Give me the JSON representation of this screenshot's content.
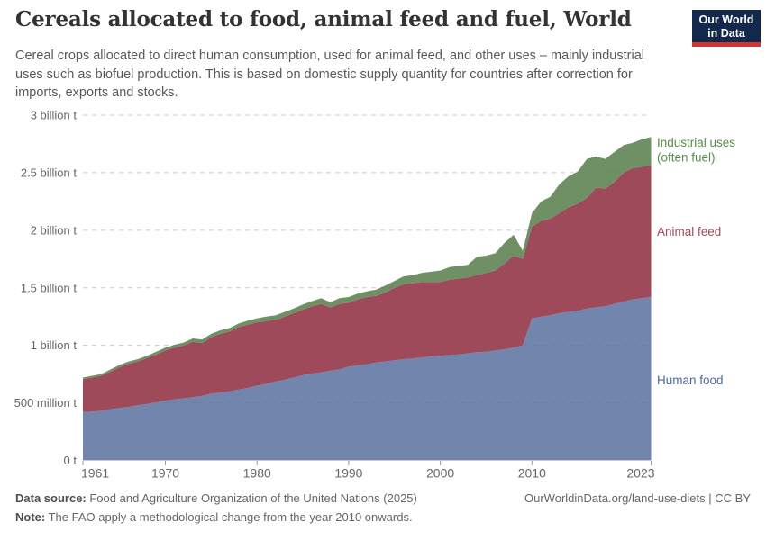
{
  "header": {
    "title": "Cereals allocated to food, animal feed and fuel, World",
    "subtitle": "Cereal crops allocated to direct human consumption, used for animal feed, and other uses – mainly industrial uses such as biofuel production. This is based on domestic supply quantity for countries after correction for imports, exports and stocks.",
    "logo": {
      "line1": "Our World",
      "line2": "in Data",
      "bg_color": "#12294d",
      "bar_color": "#d0362d"
    }
  },
  "chart_data": {
    "type": "area",
    "stacked": true,
    "title": "Cereals allocated to food, animal feed and fuel, World",
    "unit": "tonnes",
    "ylabel": "",
    "xlabel": "",
    "ylim_billion_t": [
      0,
      3
    ],
    "grid": true,
    "legend_position": "right-edge-labels",
    "x_ticks": [
      1961,
      1970,
      1980,
      1990,
      2000,
      2010,
      2023
    ],
    "y_ticks": [
      {
        "value": 0,
        "label": "0 t"
      },
      {
        "value": 0.5,
        "label": "500 million t"
      },
      {
        "value": 1,
        "label": "1 billion t"
      },
      {
        "value": 1.5,
        "label": "1.5 billion t"
      },
      {
        "value": 2,
        "label": "2 billion t"
      },
      {
        "value": 2.5,
        "label": "2.5 billion t"
      },
      {
        "value": 3,
        "label": "3 billion t"
      }
    ],
    "years": [
      1961,
      1962,
      1963,
      1964,
      1965,
      1966,
      1967,
      1968,
      1969,
      1970,
      1971,
      1972,
      1973,
      1974,
      1975,
      1976,
      1977,
      1978,
      1979,
      1980,
      1981,
      1982,
      1983,
      1984,
      1985,
      1986,
      1987,
      1988,
      1989,
      1990,
      1991,
      1992,
      1993,
      1994,
      1995,
      1996,
      1997,
      1998,
      1999,
      2000,
      2001,
      2002,
      2003,
      2004,
      2005,
      2006,
      2007,
      2008,
      2009,
      2010,
      2011,
      2012,
      2013,
      2014,
      2015,
      2016,
      2017,
      2018,
      2019,
      2020,
      2021,
      2022,
      2023
    ],
    "series": [
      {
        "name": "Human food",
        "label_lines": [
          "Human food"
        ],
        "color": "#7285ad",
        "label_color": "#4c6a9f",
        "values_billion_t": [
          0.42,
          0.425,
          0.43,
          0.445,
          0.455,
          0.465,
          0.48,
          0.49,
          0.505,
          0.52,
          0.53,
          0.54,
          0.55,
          0.56,
          0.58,
          0.59,
          0.6,
          0.615,
          0.63,
          0.65,
          0.665,
          0.685,
          0.7,
          0.72,
          0.74,
          0.755,
          0.765,
          0.78,
          0.79,
          0.815,
          0.825,
          0.835,
          0.85,
          0.86,
          0.87,
          0.88,
          0.885,
          0.895,
          0.905,
          0.91,
          0.915,
          0.92,
          0.93,
          0.94,
          0.945,
          0.955,
          0.965,
          0.98,
          1.0,
          1.235,
          1.25,
          1.26,
          1.28,
          1.29,
          1.3,
          1.32,
          1.33,
          1.34,
          1.36,
          1.38,
          1.4,
          1.41,
          1.42
        ]
      },
      {
        "name": "Animal feed",
        "label_lines": [
          "Animal feed"
        ],
        "color": "#9e4a5a",
        "label_color": "#a04a5b",
        "values_billion_t": [
          0.285,
          0.295,
          0.305,
          0.325,
          0.355,
          0.375,
          0.38,
          0.4,
          0.415,
          0.435,
          0.45,
          0.46,
          0.48,
          0.46,
          0.49,
          0.51,
          0.52,
          0.545,
          0.55,
          0.55,
          0.545,
          0.535,
          0.55,
          0.56,
          0.57,
          0.585,
          0.595,
          0.55,
          0.57,
          0.555,
          0.575,
          0.585,
          0.58,
          0.6,
          0.63,
          0.65,
          0.655,
          0.655,
          0.645,
          0.64,
          0.655,
          0.66,
          0.66,
          0.67,
          0.685,
          0.695,
          0.745,
          0.8,
          0.75,
          0.795,
          0.83,
          0.84,
          0.87,
          0.91,
          0.93,
          0.96,
          1.04,
          1.02,
          1.06,
          1.12,
          1.14,
          1.14,
          1.15
        ]
      },
      {
        "name": "Industrial uses (often fuel)",
        "label_lines": [
          "Industrial uses",
          "(often fuel)"
        ],
        "color": "#6e9064",
        "label_color": "#588a4e",
        "values_billion_t": [
          0.015,
          0.015,
          0.015,
          0.02,
          0.02,
          0.02,
          0.02,
          0.02,
          0.025,
          0.025,
          0.025,
          0.025,
          0.03,
          0.03,
          0.03,
          0.03,
          0.03,
          0.03,
          0.035,
          0.035,
          0.04,
          0.04,
          0.04,
          0.04,
          0.045,
          0.045,
          0.05,
          0.045,
          0.05,
          0.05,
          0.05,
          0.05,
          0.055,
          0.06,
          0.06,
          0.07,
          0.07,
          0.08,
          0.09,
          0.1,
          0.11,
          0.11,
          0.11,
          0.16,
          0.15,
          0.15,
          0.18,
          0.18,
          0.07,
          0.12,
          0.17,
          0.19,
          0.25,
          0.27,
          0.28,
          0.34,
          0.27,
          0.26,
          0.26,
          0.24,
          0.22,
          0.24,
          0.24
        ]
      }
    ],
    "series_label_positions_y": {
      "Industrial uses (often fuel)": 163,
      "Animal feed": 262,
      "Human food": 427
    }
  },
  "footer": {
    "source_label": "Data source:",
    "source_text": " Food and Agriculture Organization of the United Nations (2025)",
    "note_label": "Note:",
    "note_text": " The FAO apply a methodological change from the year 2010 onwards.",
    "link_text": "OurWorldinData.org/land-use-diets",
    "license_sep": " | ",
    "license_text": "CC BY"
  },
  "style_colors": {
    "grid": "#e2e2e2",
    "axis_line": "#cccccc",
    "tick_mark": "#999999",
    "tick_text": "#666666"
  }
}
